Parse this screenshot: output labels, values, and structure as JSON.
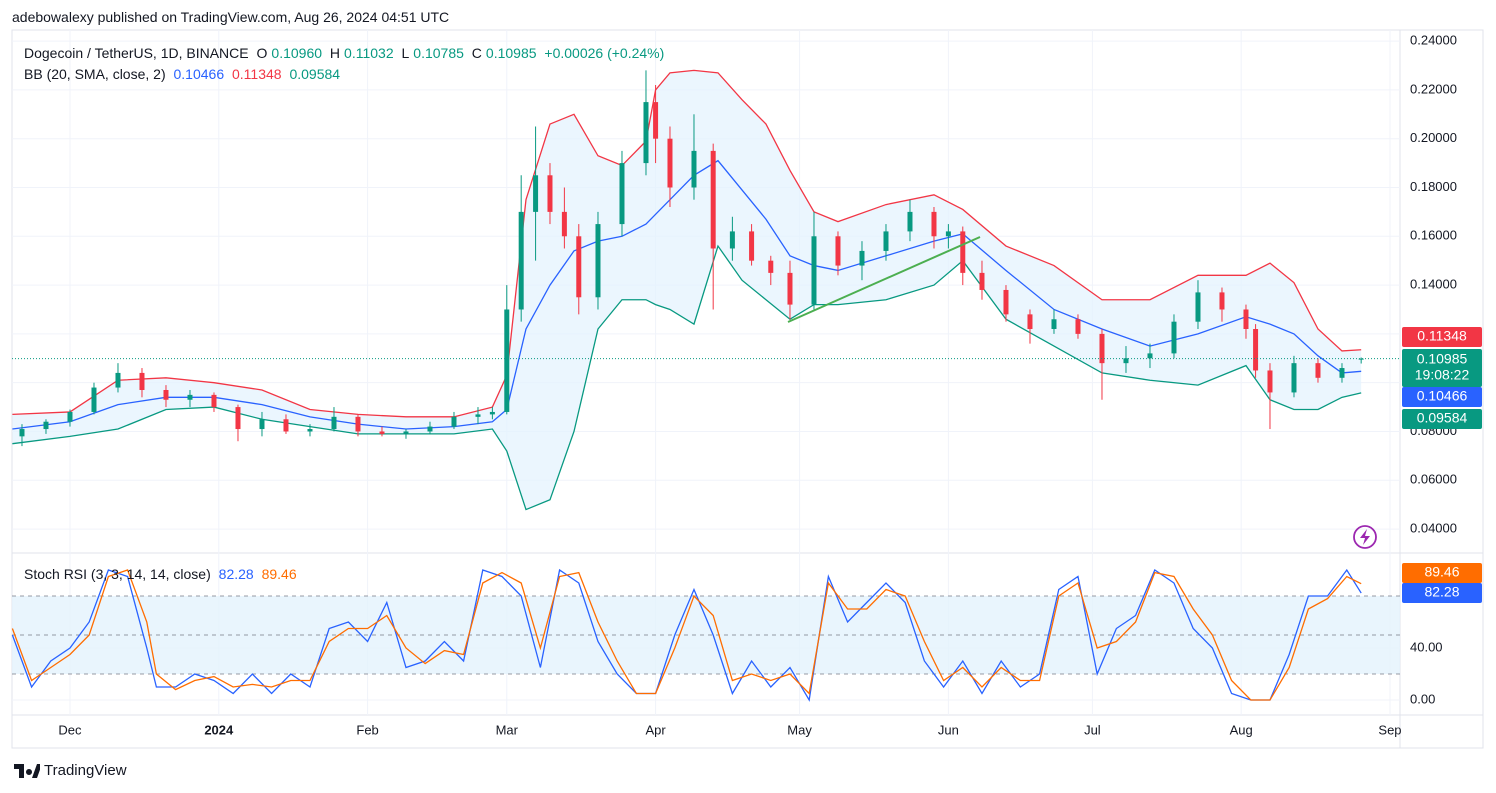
{
  "header": "adebowalexy published on TradingView.com, Aug 26, 2024 04:51 UTC",
  "footer": "TradingView",
  "chart_data": [
    {
      "type": "candlestick",
      "legend": {
        "symbol": "Dogecoin / TetherUS, 1D, BINANCE",
        "ohlc": [
          {
            "key": "O",
            "value": "0.10960"
          },
          {
            "key": "H",
            "value": "0.11032"
          },
          {
            "key": "L",
            "value": "0.10785"
          },
          {
            "key": "C",
            "value": "0.10985"
          }
        ],
        "change": "+0.00026 (+0.24%)"
      },
      "countdown": "19:08:22",
      "up_color": "#089981",
      "down_color": "#f23645",
      "x": [
        -10,
        -5,
        0,
        5,
        10,
        15,
        20,
        25,
        30,
        35,
        40,
        45,
        50,
        55,
        60,
        65,
        70,
        75,
        80,
        85,
        88,
        91,
        94,
        97,
        100,
        103,
        106,
        110,
        115,
        120,
        122,
        125,
        130,
        134,
        138,
        142,
        146,
        150,
        155,
        160,
        165,
        170,
        175,
        180,
        183,
        186,
        190,
        195,
        200,
        205,
        210,
        215,
        220,
        225,
        230,
        235,
        240,
        245,
        247,
        250,
        255,
        260,
        265,
        269
      ],
      "open": [
        0.078,
        0.081,
        0.084,
        0.088,
        0.098,
        0.104,
        0.097,
        0.093,
        0.095,
        0.09,
        0.081,
        0.085,
        0.08,
        0.081,
        0.086,
        0.08,
        0.079,
        0.08,
        0.082,
        0.086,
        0.087,
        0.088,
        0.13,
        0.17,
        0.185,
        0.17,
        0.16,
        0.135,
        0.165,
        0.19,
        0.215,
        0.2,
        0.18,
        0.195,
        0.155,
        0.162,
        0.15,
        0.145,
        0.132,
        0.16,
        0.148,
        0.154,
        0.162,
        0.17,
        0.16,
        0.162,
        0.145,
        0.138,
        0.128,
        0.122,
        0.126,
        0.12,
        0.108,
        0.11,
        0.112,
        0.125,
        0.137,
        0.13,
        0.122,
        0.105,
        0.096,
        0.108,
        0.102,
        0.1096
      ],
      "high": [
        0.083,
        0.085,
        0.089,
        0.1,
        0.108,
        0.106,
        0.099,
        0.097,
        0.096,
        0.091,
        0.088,
        0.087,
        0.083,
        0.09,
        0.087,
        0.082,
        0.081,
        0.084,
        0.088,
        0.09,
        0.09,
        0.14,
        0.185,
        0.205,
        0.19,
        0.18,
        0.165,
        0.17,
        0.195,
        0.228,
        0.222,
        0.205,
        0.21,
        0.198,
        0.168,
        0.165,
        0.152,
        0.15,
        0.17,
        0.162,
        0.158,
        0.165,
        0.175,
        0.172,
        0.165,
        0.164,
        0.15,
        0.14,
        0.13,
        0.13,
        0.128,
        0.122,
        0.115,
        0.116,
        0.128,
        0.142,
        0.139,
        0.132,
        0.124,
        0.108,
        0.111,
        0.11,
        0.108,
        0.11032
      ],
      "low": [
        0.074,
        0.079,
        0.082,
        0.087,
        0.096,
        0.094,
        0.09,
        0.09,
        0.088,
        0.076,
        0.078,
        0.079,
        0.078,
        0.08,
        0.078,
        0.078,
        0.077,
        0.079,
        0.081,
        0.083,
        0.085,
        0.087,
        0.125,
        0.15,
        0.165,
        0.155,
        0.128,
        0.13,
        0.16,
        0.185,
        0.19,
        0.172,
        0.175,
        0.13,
        0.15,
        0.148,
        0.14,
        0.126,
        0.13,
        0.144,
        0.142,
        0.15,
        0.158,
        0.155,
        0.155,
        0.14,
        0.134,
        0.125,
        0.116,
        0.12,
        0.118,
        0.093,
        0.104,
        0.106,
        0.11,
        0.122,
        0.125,
        0.118,
        0.102,
        0.081,
        0.094,
        0.1,
        0.1,
        0.10785
      ],
      "close": [
        0.081,
        0.084,
        0.088,
        0.098,
        0.104,
        0.097,
        0.093,
        0.095,
        0.09,
        0.081,
        0.085,
        0.08,
        0.081,
        0.086,
        0.08,
        0.079,
        0.08,
        0.082,
        0.086,
        0.087,
        0.088,
        0.13,
        0.17,
        0.185,
        0.17,
        0.16,
        0.135,
        0.165,
        0.19,
        0.215,
        0.2,
        0.18,
        0.195,
        0.155,
        0.162,
        0.15,
        0.145,
        0.132,
        0.16,
        0.148,
        0.154,
        0.162,
        0.17,
        0.16,
        0.162,
        0.145,
        0.138,
        0.128,
        0.122,
        0.126,
        0.12,
        0.108,
        0.11,
        0.112,
        0.125,
        0.137,
        0.13,
        0.122,
        0.105,
        0.096,
        0.108,
        0.102,
        0.106,
        0.10985
      ],
      "overlay": {
        "name": "BB (20, SMA, close, 2)",
        "fill": "#e3f2fd",
        "x": [
          -12,
          0,
          10,
          20,
          30,
          40,
          50,
          60,
          70,
          80,
          88,
          91,
          95,
          100,
          105,
          110,
          115,
          120,
          122,
          125,
          130,
          135,
          140,
          145,
          150,
          155,
          160,
          170,
          180,
          186,
          195,
          205,
          215,
          225,
          235,
          245,
          250,
          255,
          260,
          265,
          269
        ],
        "series": [
          {
            "color": "#f23645",
            "value_label": "0.11348",
            "values": [
              0.087,
              0.088,
              0.101,
              0.102,
              0.1,
              0.097,
              0.089,
              0.087,
              0.086,
              0.086,
              0.09,
              0.103,
              0.175,
              0.206,
              0.21,
              0.193,
              0.189,
              0.199,
              0.22,
              0.227,
              0.228,
              0.227,
              0.216,
              0.206,
              0.187,
              0.17,
              0.166,
              0.173,
              0.177,
              0.171,
              0.156,
              0.148,
              0.134,
              0.134,
              0.144,
              0.144,
              0.149,
              0.141,
              0.122,
              0.113,
              0.11348
            ]
          },
          {
            "color": "#2962ff",
            "value_label": "0.10466",
            "values": [
              0.081,
              0.084,
              0.091,
              0.094,
              0.094,
              0.091,
              0.086,
              0.083,
              0.081,
              0.082,
              0.084,
              0.089,
              0.122,
              0.14,
              0.154,
              0.158,
              0.16,
              0.165,
              0.169,
              0.175,
              0.185,
              0.191,
              0.179,
              0.167,
              0.152,
              0.148,
              0.146,
              0.152,
              0.158,
              0.161,
              0.146,
              0.13,
              0.122,
              0.115,
              0.12,
              0.127,
              0.124,
              0.12,
              0.111,
              0.104,
              0.10466
            ]
          },
          {
            "color": "#089981",
            "value_label": "0.09584",
            "values": [
              0.075,
              0.078,
              0.081,
              0.089,
              0.09,
              0.085,
              0.082,
              0.079,
              0.079,
              0.079,
              0.081,
              0.072,
              0.048,
              0.052,
              0.08,
              0.122,
              0.134,
              0.134,
              0.132,
              0.13,
              0.124,
              0.156,
              0.142,
              0.134,
              0.126,
              0.132,
              0.132,
              0.134,
              0.14,
              0.15,
              0.126,
              0.115,
              0.104,
              0.101,
              0.099,
              0.107,
              0.093,
              0.089,
              0.089,
              0.094,
              0.09584
            ]
          }
        ]
      },
      "xlim": [
        -12.08,
        276.67
      ],
      "xticks": [
        {
          "value": 0,
          "label": "Dec"
        },
        {
          "value": 31,
          "label": "2024"
        },
        {
          "value": 62,
          "label": "Feb"
        },
        {
          "value": 91,
          "label": "Mar"
        },
        {
          "value": 122,
          "label": "Apr"
        },
        {
          "value": 152,
          "label": "May"
        },
        {
          "value": 183,
          "label": "Jun"
        },
        {
          "value": 213,
          "label": "Jul"
        },
        {
          "value": 244,
          "label": "Aug"
        },
        {
          "value": 275,
          "label": "Sep"
        }
      ],
      "ylim": [
        0.0306,
        0.2425
      ],
      "yticks": [
        {
          "value": 0.04,
          "label": "0.04000"
        },
        {
          "value": 0.06,
          "label": "0.06000"
        },
        {
          "value": 0.08,
          "label": "0.08000"
        },
        {
          "value": 0.1,
          "label": "0.10000"
        },
        {
          "value": 0.12,
          "label": "0.12000"
        },
        {
          "value": 0.14,
          "label": "0.14000"
        },
        {
          "value": 0.16,
          "label": "0.16000"
        },
        {
          "value": 0.18,
          "label": "0.18000"
        },
        {
          "value": 0.2,
          "label": "0.20000"
        },
        {
          "value": 0.22,
          "label": "0.22000"
        },
        {
          "value": 0.24,
          "label": "0.24000"
        }
      ],
      "grid": true
    },
    {
      "type": "line",
      "title": "Stoch RSI (3, 3, 14, 14, close)",
      "x": [
        -12,
        -8,
        -4,
        0,
        4,
        8,
        12,
        16,
        18,
        22,
        26,
        30,
        34,
        38,
        42,
        46,
        50,
        54,
        58,
        62,
        66,
        70,
        74,
        78,
        82,
        86,
        90,
        94,
        98,
        102,
        106,
        110,
        114,
        118,
        122,
        126,
        130,
        134,
        138,
        142,
        146,
        150,
        154,
        158,
        162,
        166,
        170,
        174,
        178,
        182,
        186,
        190,
        194,
        198,
        202,
        206,
        210,
        214,
        218,
        222,
        226,
        230,
        234,
        238,
        242,
        246,
        250,
        254,
        258,
        262,
        266,
        269
      ],
      "series": [
        {
          "color": "#2962ff",
          "value_label": "82.28",
          "values": [
            50,
            10,
            30,
            40,
            60,
            100,
            95,
            40,
            10,
            10,
            20,
            15,
            5,
            20,
            5,
            20,
            10,
            55,
            60,
            45,
            75,
            25,
            30,
            45,
            30,
            100,
            95,
            80,
            25,
            100,
            90,
            45,
            20,
            5,
            5,
            50,
            85,
            50,
            5,
            30,
            10,
            25,
            0,
            95,
            60,
            75,
            90,
            75,
            30,
            10,
            30,
            5,
            30,
            10,
            20,
            85,
            95,
            20,
            55,
            65,
            100,
            90,
            55,
            40,
            5,
            0,
            0,
            35,
            80,
            80,
            100,
            82.28
          ]
        },
        {
          "color": "#ff6d00",
          "value_label": "89.46",
          "values": [
            55,
            15,
            25,
            35,
            50,
            95,
            100,
            60,
            20,
            8,
            15,
            18,
            10,
            12,
            10,
            15,
            15,
            45,
            55,
            55,
            65,
            40,
            28,
            38,
            35,
            90,
            98,
            90,
            40,
            95,
            98,
            60,
            30,
            5,
            5,
            40,
            80,
            65,
            15,
            20,
            15,
            20,
            5,
            90,
            70,
            70,
            85,
            80,
            45,
            15,
            25,
            10,
            25,
            15,
            15,
            80,
            90,
            40,
            45,
            60,
            98,
            95,
            70,
            50,
            15,
            0,
            0,
            25,
            70,
            78,
            95,
            89.46
          ]
        }
      ],
      "levels": [
        20,
        50,
        80
      ],
      "band_color": "#e3f2fd",
      "ylim": [
        -10,
        110
      ],
      "yticks": [
        {
          "value": 0,
          "label": "0.00"
        },
        {
          "value": 40,
          "label": "40.00"
        }
      ]
    }
  ]
}
